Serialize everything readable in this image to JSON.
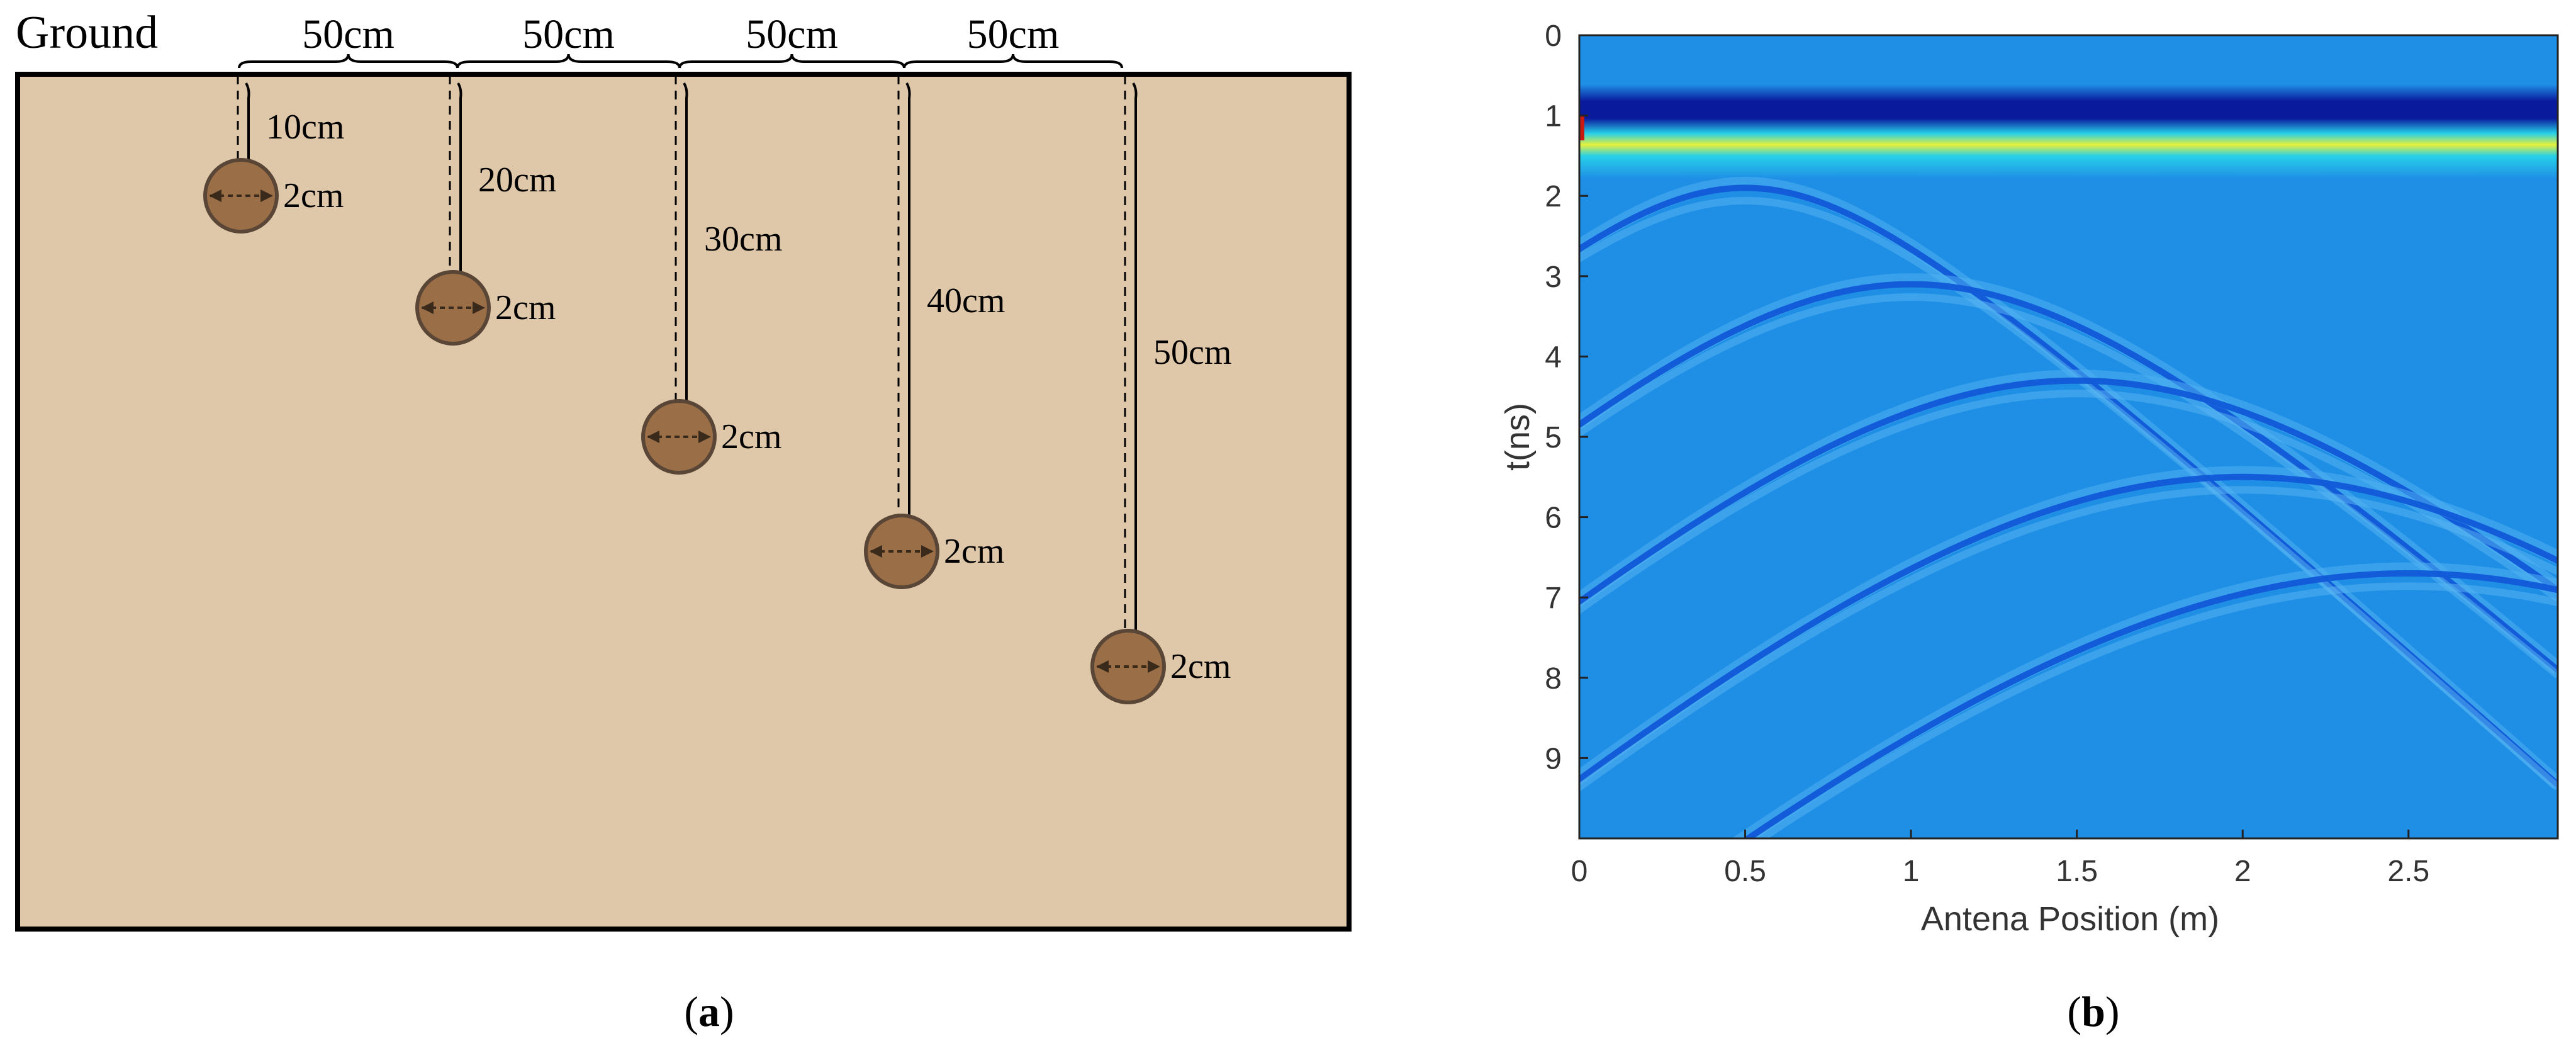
{
  "panel_a": {
    "ground_label": "Ground",
    "spacing_labels": [
      "50cm",
      "50cm",
      "50cm",
      "50cm"
    ],
    "targets": [
      {
        "depth_label": "10cm",
        "diameter_label": "2cm"
      },
      {
        "depth_label": "20cm",
        "diameter_label": "2cm"
      },
      {
        "depth_label": "30cm",
        "diameter_label": "2cm"
      },
      {
        "depth_label": "40cm",
        "diameter_label": "2cm"
      },
      {
        "depth_label": "50cm",
        "diameter_label": "2cm"
      }
    ],
    "caption": "a",
    "colors": {
      "soil": "#dfc7aa",
      "target": "#9a6e47",
      "target_edge": "#5a4636"
    }
  },
  "panel_b": {
    "caption": "b",
    "colors": {
      "background": "#1f8fe6",
      "dark_band": "#0a1a9c",
      "bright_band": "#e6f03c",
      "hyperbola": "#1058d8"
    },
    "chart_data": {
      "type": "heatmap",
      "title": "",
      "xlabel": "Antena Position (m)",
      "ylabel": "t(ns)",
      "xlim": [
        0,
        2.95
      ],
      "ylim": [
        0,
        10
      ],
      "x_ticks": [
        "0",
        "0.5",
        "1",
        "1.5",
        "2",
        "2.5"
      ],
      "y_ticks": [
        "0",
        "1",
        "2",
        "3",
        "4",
        "5",
        "6",
        "7",
        "8",
        "9"
      ],
      "direct_wave_t_ns": 1.1,
      "hyperbolas": [
        {
          "apex_x_m": 0.5,
          "apex_t_ns": 1.9
        },
        {
          "apex_x_m": 1.0,
          "apex_t_ns": 3.1
        },
        {
          "apex_x_m": 1.5,
          "apex_t_ns": 4.3
        },
        {
          "apex_x_m": 2.0,
          "apex_t_ns": 5.5
        },
        {
          "apex_x_m": 2.5,
          "apex_t_ns": 6.7
        }
      ]
    }
  }
}
